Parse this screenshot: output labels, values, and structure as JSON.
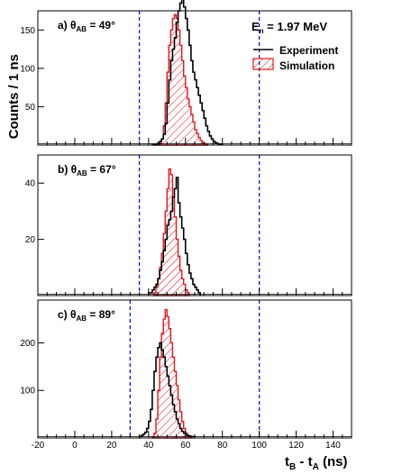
{
  "chart_data": {
    "type": "histogram",
    "energy_label": "E",
    "energy_sub": "n",
    "energy_value": " = 1.97 MeV",
    "ylabel": "Counts / 1 ns",
    "xlabel": {
      "t1": "t",
      "s1": "B",
      "mid": " - t",
      "s2": "A",
      "end": " (ns)"
    },
    "xlim": [
      -20,
      150
    ],
    "xticks": [
      -20,
      0,
      20,
      40,
      60,
      80,
      100,
      120,
      140
    ],
    "colors": {
      "experiment": "#000000",
      "simulation": "#e8141b",
      "cut_lines": "#0a1bd6"
    },
    "legend": {
      "experiment": "Experiment",
      "simulation": "Simulation",
      "placement": "top-right of panel a"
    },
    "panels": [
      {
        "tag": "a)",
        "angle_prefix": "θ",
        "angle_sub": "AB",
        "angle_value": " = 49°",
        "ylim": [
          0,
          175
        ],
        "yticks": [
          50,
          100,
          150
        ],
        "cuts": [
          35,
          100
        ],
        "experiment": {
          "x0": 42,
          "values": [
            1,
            0,
            1,
            2,
            5,
            8,
            14,
            28,
            55,
            85,
            110,
            125,
            140,
            160,
            175,
            185,
            190,
            180,
            165,
            150,
            130,
            110,
            95,
            85,
            75,
            65,
            55,
            45,
            35,
            25,
            18,
            12,
            8,
            5,
            3,
            2,
            1,
            1
          ]
        },
        "simulation": {
          "x0": 45,
          "values": [
            1,
            2,
            8,
            25,
            55,
            95,
            130,
            150,
            165,
            170,
            165,
            150,
            130,
            110,
            90,
            75,
            60,
            50,
            40,
            30,
            20,
            15,
            10,
            6,
            3,
            2,
            1
          ]
        }
      },
      {
        "tag": "b)",
        "angle_prefix": "θ",
        "angle_sub": "AB",
        "angle_value": " = 67°",
        "ylim": [
          0,
          50
        ],
        "yticks": [
          20,
          40
        ],
        "cuts": [
          35,
          100
        ],
        "experiment": {
          "x0": 40,
          "values": [
            1,
            1,
            2,
            3,
            4,
            6,
            9,
            12,
            16,
            20,
            25,
            27,
            30,
            35,
            38,
            42,
            33,
            28,
            24,
            20,
            15,
            11,
            8,
            6,
            4,
            3,
            2,
            1
          ]
        },
        "simulation": {
          "x0": 43,
          "values": [
            1,
            3,
            6,
            10,
            15,
            22,
            30,
            38,
            45,
            43,
            35,
            28,
            20,
            14,
            9,
            6,
            4,
            2,
            1
          ]
        }
      },
      {
        "tag": "c)",
        "angle_prefix": "θ",
        "angle_sub": "AB",
        "angle_value": " = 89°",
        "ylim": [
          0,
          290
        ],
        "yticks": [
          100,
          200
        ],
        "cuts": [
          30,
          100
        ],
        "experiment": {
          "x0": 35,
          "values": [
            3,
            5,
            8,
            12,
            20,
            35,
            60,
            100,
            140,
            170,
            190,
            200,
            185,
            170,
            150,
            130,
            110,
            90,
            70,
            55,
            40,
            30,
            20,
            14,
            10,
            7,
            5,
            4,
            3,
            3
          ]
        },
        "simulation": {
          "x0": 42,
          "values": [
            2,
            10,
            40,
            100,
            170,
            220,
            250,
            270,
            255,
            230,
            200,
            170,
            140,
            110,
            80,
            55,
            35,
            20,
            10,
            4,
            2
          ]
        }
      }
    ]
  }
}
